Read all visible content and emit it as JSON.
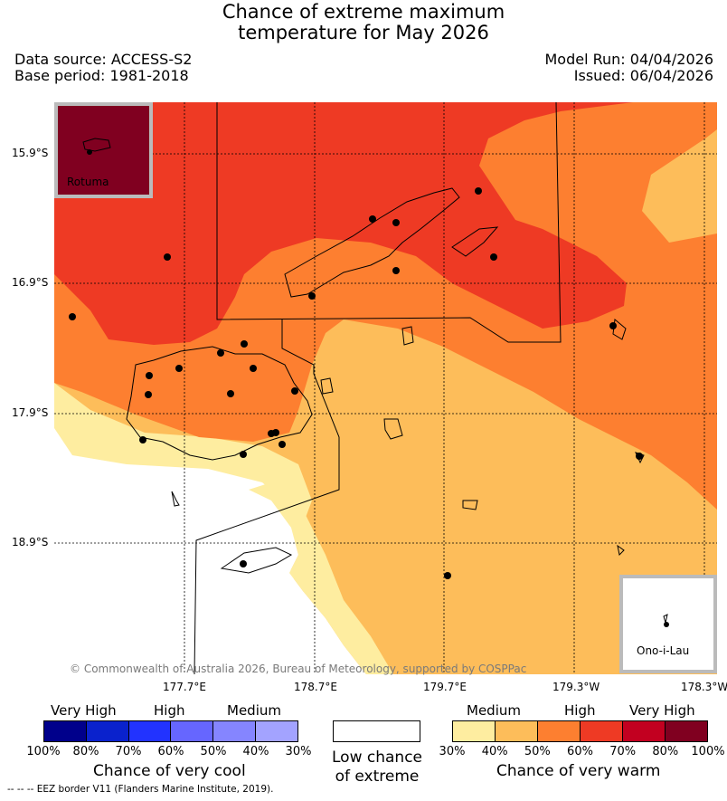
{
  "title": {
    "line1": "Chance of extreme maximum",
    "line2": "temperature for May 2026"
  },
  "header": {
    "data_source": "Data source: ACCESS-S2",
    "base_period": "Base period: 1981-2018",
    "model_run": "Model Run: 04/04/2026",
    "issued": "Issued: 06/04/2026"
  },
  "map": {
    "lat_labels": [
      "15.9°S",
      "16.9°S",
      "17.9°S",
      "18.9°S"
    ],
    "lon_labels": [
      "177.7°E",
      "178.7°E",
      "179.7°E",
      "179.3°W",
      "178.3°W"
    ],
    "copyright": "© Commonwealth of Australia 2026, Bureau of Meteorology, supported by COSPPac",
    "insets": {
      "rotuma": "Rotuma",
      "ono": "Ono-i-Lau"
    }
  },
  "legend": {
    "cool": {
      "headers": [
        "Very High",
        "High",
        "Medium"
      ],
      "ticks": [
        "100%",
        "80%",
        "70%",
        "60%",
        "50%",
        "40%",
        "30%"
      ],
      "title": "Chance of very cool",
      "colors": [
        "#00008b",
        "#0a22cd",
        "#2233ff",
        "#6666ff",
        "#8585ff",
        "#a3a3ff"
      ]
    },
    "neutral": {
      "line1": "Low chance",
      "line2": "of extreme"
    },
    "warm": {
      "headers": [
        "Medium",
        "High",
        "Very High"
      ],
      "ticks": [
        "30%",
        "40%",
        "50%",
        "60%",
        "70%",
        "80%",
        "100%"
      ],
      "title": "Chance of very warm",
      "colors": [
        "#feeda0",
        "#fdbd5a",
        "#fd7f30",
        "#ee3a24",
        "#c20020",
        "#800020"
      ]
    }
  },
  "footer": "--  --  -- EEZ border V11 (Flanders Marine Institute, 2019)."
}
